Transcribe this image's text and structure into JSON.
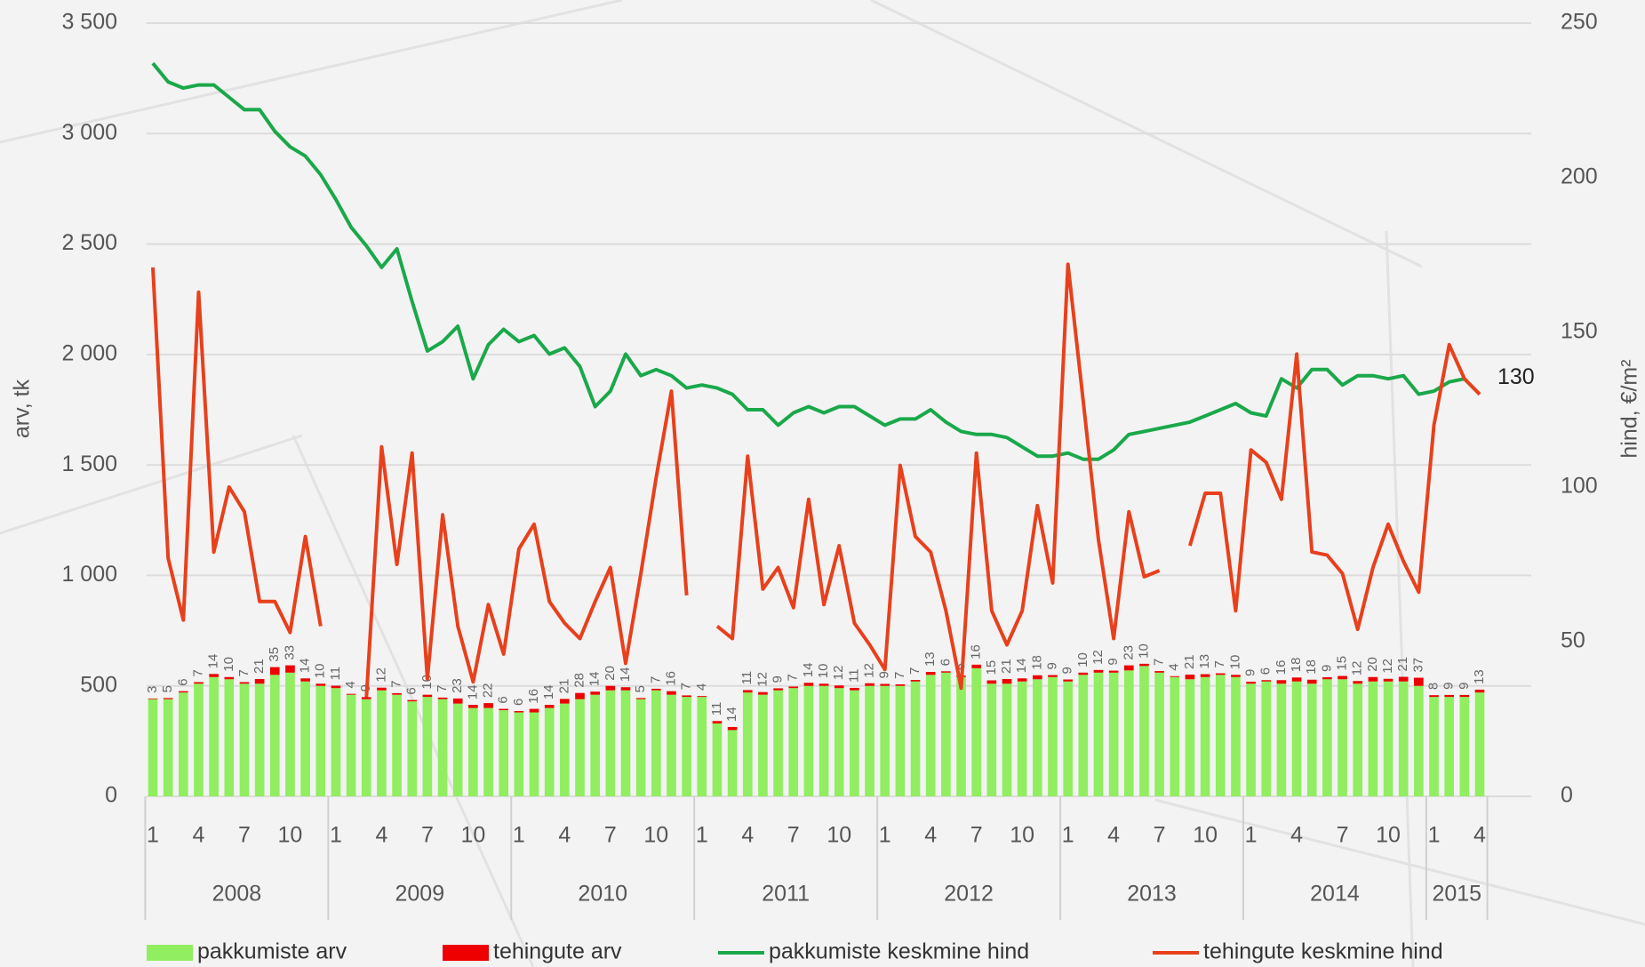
{
  "chart_data": {
    "type": "combo",
    "categories": [
      "1",
      null,
      null,
      "4",
      null,
      null,
      "7",
      null,
      null,
      "10",
      null,
      null,
      "1",
      null,
      null,
      "4",
      null,
      null,
      "7",
      null,
      null,
      "10",
      null,
      null,
      "1",
      null,
      null,
      "4",
      null,
      null,
      "7",
      null,
      null,
      "10",
      null,
      null,
      "1",
      null,
      null,
      "4",
      null,
      null,
      "7",
      null,
      null,
      "10",
      null,
      null,
      "1",
      null,
      null,
      "4",
      null,
      null,
      "7",
      null,
      null,
      "10",
      null,
      null,
      "1",
      null,
      null,
      "4",
      null,
      null,
      "7",
      null,
      null,
      "10",
      null,
      null,
      "1",
      null,
      null,
      "4",
      null,
      null,
      "7",
      null,
      null,
      "10",
      null,
      null,
      "1",
      null,
      null,
      "4"
    ],
    "year_labels": [
      "2008",
      "2009",
      "2010",
      "2011",
      "2012",
      "2013",
      "2014",
      "2015"
    ],
    "y_label": "arv, tk",
    "y2_label": "hind, €/m²",
    "ylim": [
      0,
      3500
    ],
    "yticks": [
      0,
      500,
      {
        "value": 1000,
        "label": "1 000"
      },
      {
        "value": 1500,
        "label": "1 500"
      },
      {
        "value": 2000,
        "label": "2 000"
      },
      {
        "value": 2500,
        "label": "2 500"
      },
      {
        "value": 3000,
        "label": "3 000"
      },
      {
        "value": 3500,
        "label": "3 500"
      }
    ],
    "y2lim": [
      0,
      250
    ],
    "y2ticks": [
      0,
      50,
      100,
      150,
      200,
      250
    ],
    "grid": true,
    "stacked": true,
    "legend": "bottom",
    "series": [
      {
        "name": "pakkumiste arv",
        "type": "bar",
        "color": "#90ee60",
        "values": [
          440,
          440,
          470,
          510,
          540,
          530,
          510,
          510,
          550,
          560,
          520,
          500,
          490,
          460,
          440,
          480,
          460,
          430,
          450,
          440,
          420,
          400,
          400,
          390,
          380,
          380,
          400,
          420,
          440,
          460,
          480,
          480,
          440,
          480,
          460,
          450,
          450,
          330,
          300,
          470,
          460,
          480,
          490,
          500,
          500,
          490,
          480,
          500,
          500,
          500,
          520,
          550,
          560,
          540,
          580,
          510,
          510,
          520,
          530,
          540,
          520,
          550,
          560,
          560,
          570,
          590,
          560,
          540,
          530,
          540,
          550,
          540,
          510,
          520,
          510,
          520,
          510,
          530,
          530,
          510,
          520,
          520,
          520,
          500,
          450,
          450,
          450,
          470
        ]
      },
      {
        "name": "tehingute arv",
        "type": "bar",
        "color": "#ee0000",
        "data_labels": true,
        "values": [
          3,
          5,
          6,
          7,
          14,
          10,
          7,
          21,
          35,
          33,
          14,
          10,
          11,
          4,
          9,
          12,
          7,
          6,
          10,
          7,
          23,
          14,
          22,
          6,
          6,
          16,
          14,
          21,
          28,
          14,
          20,
          14,
          5,
          7,
          16,
          7,
          4,
          11,
          14,
          11,
          12,
          9,
          7,
          14,
          10,
          12,
          11,
          12,
          9,
          7,
          7,
          13,
          6,
          6,
          16,
          15,
          21,
          14,
          18,
          9,
          9,
          10,
          12,
          9,
          23,
          10,
          7,
          4,
          21,
          13,
          7,
          10,
          9,
          6,
          16,
          18,
          18,
          9,
          15,
          12,
          20,
          12,
          21,
          37,
          8,
          9,
          9,
          13
        ]
      },
      {
        "name": "pakkumiste keskmine hind",
        "type": "line",
        "axis": "y2",
        "color": "#1aa84a",
        "values": [
          237,
          231,
          229,
          230,
          230,
          226,
          222,
          222,
          215,
          210,
          207,
          201,
          193,
          184,
          178,
          171,
          177,
          160,
          144,
          147,
          152,
          135,
          146,
          151,
          147,
          149,
          143,
          145,
          139,
          126,
          131,
          143,
          136,
          138,
          136,
          132,
          133,
          132,
          130,
          125,
          125,
          120,
          124,
          126,
          124,
          126,
          126,
          123,
          120,
          122,
          122,
          125,
          121,
          118,
          117,
          117,
          116,
          113,
          110,
          110,
          111,
          109,
          109,
          112,
          117,
          118,
          119,
          120,
          121,
          123,
          125,
          127,
          124,
          123,
          135,
          132,
          138,
          138,
          133,
          136,
          136,
          135,
          136,
          130,
          131,
          134,
          135,
          130
        ]
      },
      {
        "name": "tehingute keskmine hind",
        "type": "line",
        "axis": "y2",
        "color": "#e8401c",
        "values": [
          171,
          77,
          57,
          163,
          79,
          100,
          92,
          63,
          63,
          53,
          84,
          55,
          null,
          null,
          32,
          113,
          75,
          111,
          38,
          91,
          55,
          37,
          62,
          46,
          80,
          88,
          63,
          56,
          51,
          63,
          74,
          43,
          72,
          103,
          131,
          65,
          null,
          55,
          51,
          110,
          67,
          74,
          61,
          96,
          62,
          81,
          56,
          49,
          41,
          107,
          84,
          79,
          60,
          35,
          111,
          60,
          49,
          60,
          94,
          69,
          172,
          128,
          83,
          51,
          92,
          71,
          73,
          null,
          81,
          98,
          98,
          60,
          112,
          108,
          96,
          143,
          79,
          78,
          72,
          54,
          74,
          88,
          76,
          66,
          120,
          146,
          135,
          130
        ]
      }
    ],
    "annotations": [
      {
        "text": "130"
      }
    ]
  }
}
